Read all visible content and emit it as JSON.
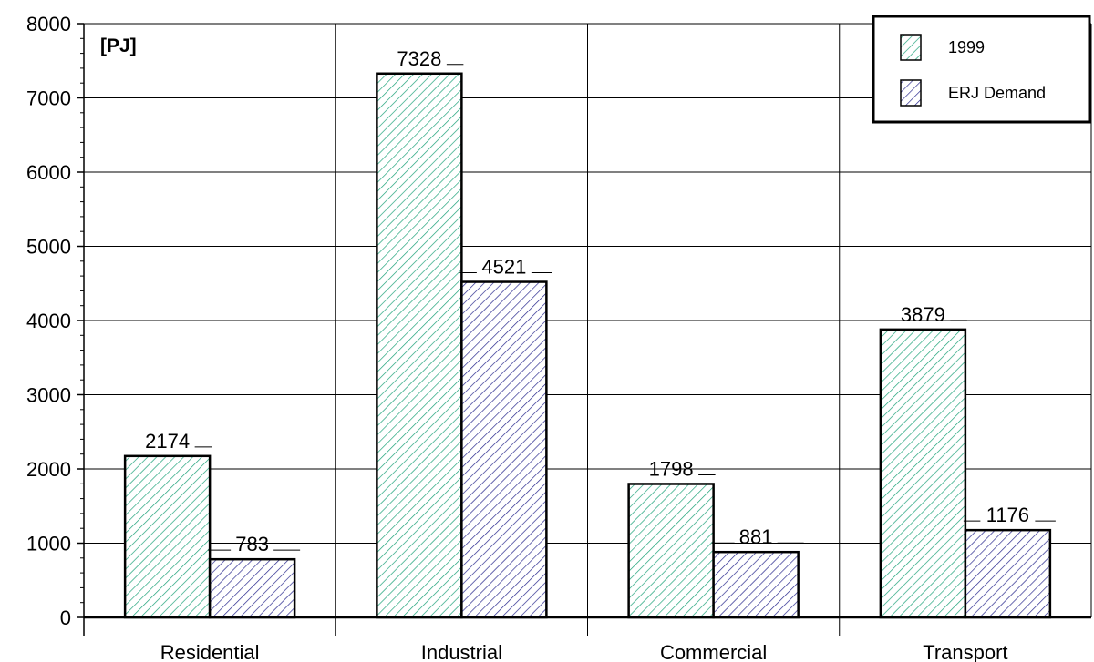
{
  "chart_data": {
    "type": "bar",
    "unit_label": "[PJ]",
    "categories": [
      "Residential",
      "Industrial",
      "Commercial",
      "Transport"
    ],
    "series": [
      {
        "name": "1999",
        "values": [
          2174,
          7328,
          1798,
          3879
        ],
        "color": "#1fa37a"
      },
      {
        "name": "ERJ Demand",
        "values": [
          783,
          4521,
          881,
          1176
        ],
        "color": "#2b2b8f"
      }
    ],
    "ylim": [
      0,
      8000
    ],
    "yticks": [
      0,
      1000,
      2000,
      3000,
      4000,
      5000,
      6000,
      7000,
      8000
    ],
    "grid": true,
    "legend_position": "top-right"
  }
}
